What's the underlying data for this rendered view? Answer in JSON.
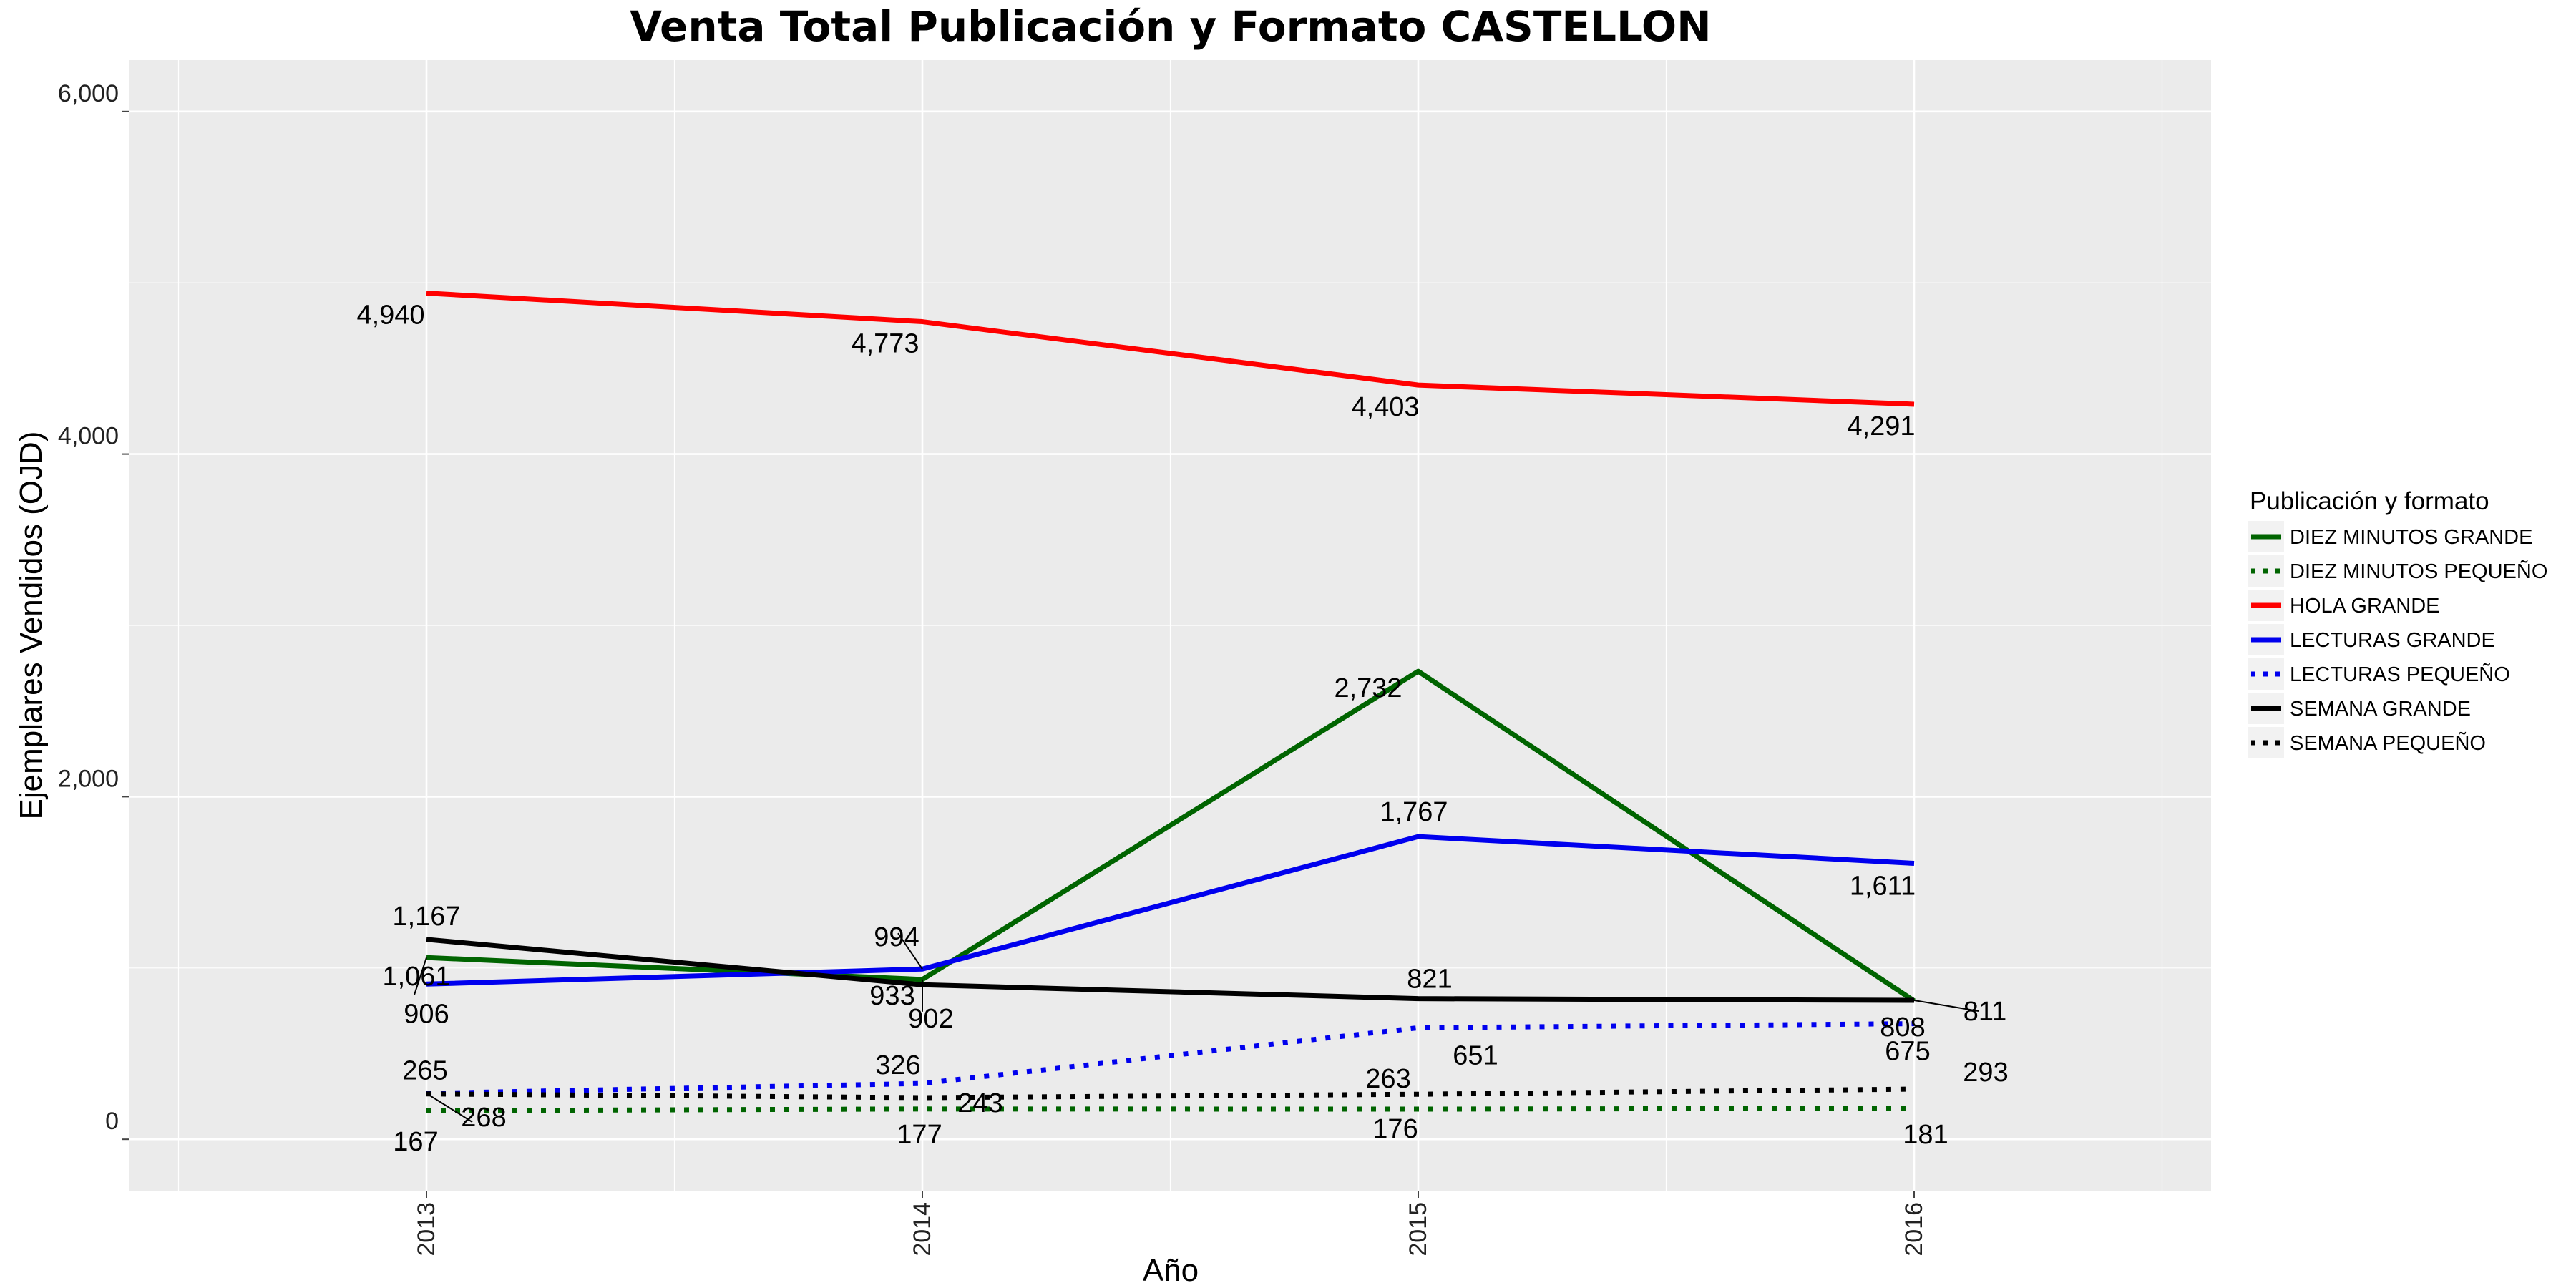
{
  "chart_data": {
    "type": "line",
    "title": "Venta Total Publicación y Formato  CASTELLON",
    "xlabel": "Año",
    "ylabel": "Ejemplares Vendidos (OJD)",
    "x": [
      "2013",
      "2014",
      "2015",
      "2016"
    ],
    "y_ticks": [
      "0",
      "2,000",
      "4,000",
      "6,000"
    ],
    "ylim": [
      -300,
      6300
    ],
    "grid": true,
    "legend_title": "Publicación y formato",
    "legend_position": "right",
    "series": [
      {
        "name": "DIEZ MINUTOS GRANDE",
        "color": "#006400",
        "style": "solid",
        "values": [
          1061,
          933,
          2732,
          808
        ],
        "labels": [
          "1,061",
          "933",
          "2,732",
          "808"
        ]
      },
      {
        "name": "DIEZ MINUTOS PEQUEÑO",
        "color": "#006400",
        "style": "dotted",
        "values": [
          167,
          177,
          176,
          181
        ],
        "labels": [
          "167",
          "177",
          "176",
          "181"
        ]
      },
      {
        "name": "HOLA GRANDE",
        "color": "#ff0000",
        "style": "solid",
        "values": [
          4940,
          4773,
          4403,
          4291
        ],
        "labels": [
          "4,940",
          "4,773",
          "4,403",
          "4,291"
        ]
      },
      {
        "name": "LECTURAS GRANDE",
        "color": "#0000ee",
        "style": "solid",
        "values": [
          906,
          994,
          1767,
          1611
        ],
        "labels": [
          "906",
          "994",
          "1,767",
          "1,611"
        ]
      },
      {
        "name": "LECTURAS PEQUEÑO",
        "color": "#0000ee",
        "style": "dotted",
        "values": [
          268,
          326,
          651,
          675
        ],
        "labels": [
          "268",
          "326",
          "651",
          "675"
        ]
      },
      {
        "name": "SEMANA GRANDE",
        "color": "#000000",
        "style": "solid",
        "values": [
          1167,
          902,
          821,
          811
        ],
        "labels": [
          "1,167",
          "902",
          "821",
          "811"
        ]
      },
      {
        "name": "SEMANA PEQUEÑO",
        "color": "#000000",
        "style": "dotted",
        "values": [
          265,
          243,
          263,
          293
        ],
        "labels": [
          "265",
          "243",
          "263",
          "293"
        ]
      }
    ]
  }
}
